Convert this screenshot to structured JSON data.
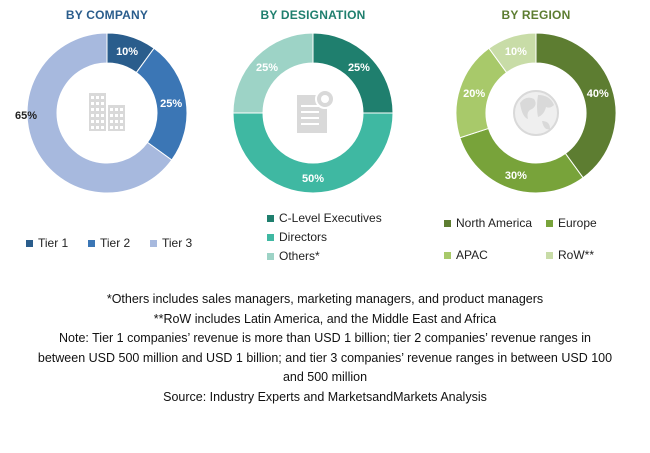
{
  "chart_data": [
    {
      "type": "donut",
      "title": "BY COMPANY",
      "series": [
        {
          "name": "Tier 1",
          "value": 10,
          "label": "10%",
          "color": "#2a5d8c"
        },
        {
          "name": "Tier 2",
          "value": 25,
          "label": "25%",
          "color": "#3b76b5"
        },
        {
          "name": "Tier 3",
          "value": 65,
          "label": "65%",
          "color": "#a7b9de"
        }
      ],
      "legend_position": "bottom",
      "center_icon": "buildings-icon"
    },
    {
      "type": "donut",
      "title": "BY DESIGNATION",
      "series": [
        {
          "name": "C-Level Executives",
          "value": 25,
          "label": "25%",
          "color": "#1f7f6e"
        },
        {
          "name": "Directors",
          "value": 50,
          "label": "50%",
          "color": "#3fb8a2"
        },
        {
          "name": "Others*",
          "value": 25,
          "label": "25%",
          "color": "#9dd3c6"
        }
      ],
      "legend_position": "bottom",
      "center_icon": "certificate-document-icon"
    },
    {
      "type": "donut",
      "title": "BY REGION",
      "series": [
        {
          "name": "North America",
          "value": 40,
          "label": "40%",
          "color": "#5d7d31"
        },
        {
          "name": "Europe",
          "value": 30,
          "label": "30%",
          "color": "#78a33a"
        },
        {
          "name": "APAC",
          "value": 20,
          "label": "20%",
          "color": "#a8c96a"
        },
        {
          "name": "RoW**",
          "value": 10,
          "label": "10%",
          "color": "#c8dca7"
        }
      ],
      "legend_position": "bottom",
      "center_icon": "globe-icon"
    }
  ],
  "notes": {
    "line1": "*Others includes sales managers, marketing managers, and product managers",
    "line2": "**RoW includes Latin America, and the Middle East and Africa",
    "line3": "Note: Tier 1 companies’ revenue is more than USD 1 billion; tier 2 companies’ revenue ranges in",
    "line4": "between USD 500 million and USD 1 billion; and tier 3 companies’ revenue ranges in between USD 100",
    "line5": "and 500 million",
    "line6": "Source: Industry Experts and MarketsandMarkets Analysis"
  },
  "colors": {
    "title_company": "#2a5d8c",
    "title_designation": "#1f7f6e",
    "title_region": "#5d7d31"
  }
}
